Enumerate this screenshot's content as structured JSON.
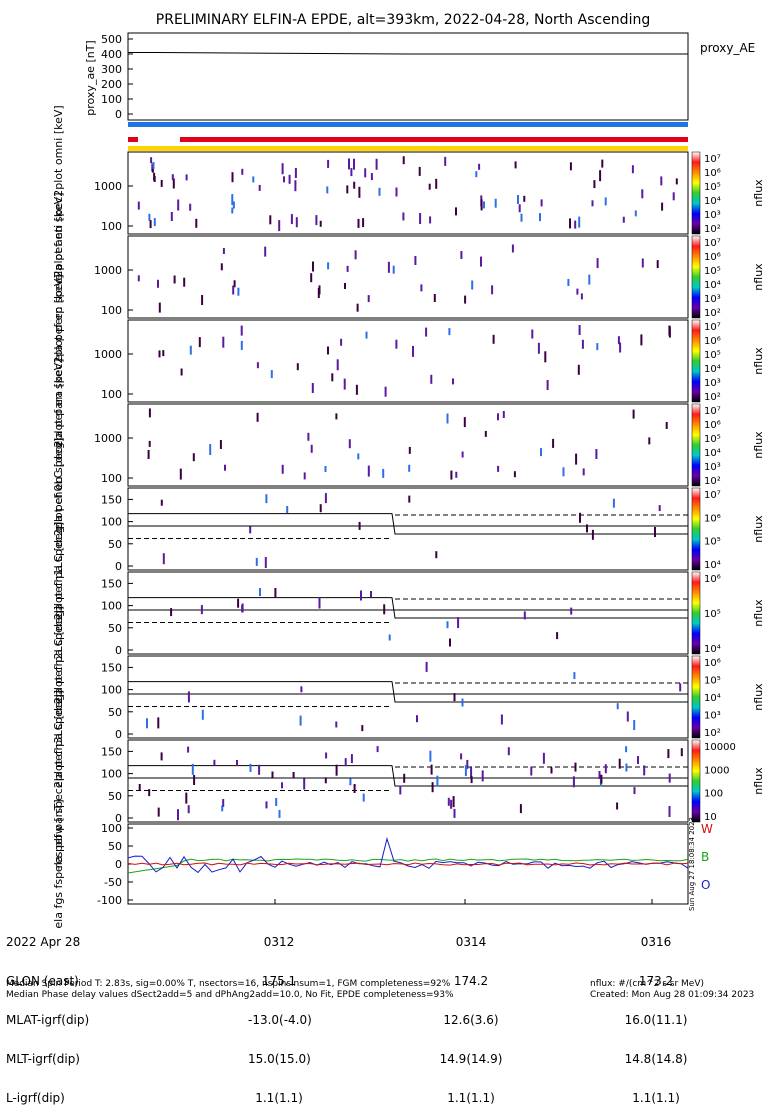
{
  "title": "PRELIMINARY ELFIN-A EPDE, alt=393km, 2022-04-28, North Ascending",
  "colors": {
    "blue_bar": "#1e73e6",
    "red_bar": "#e0001a",
    "yellow_bar": "#ffd400",
    "dark": "#3a0040",
    "purple": "#5a1aa0",
    "mid_blue": "#2e6fe6"
  },
  "chart_data": [
    {
      "type": "line",
      "name": "proxy_ae",
      "ylabel": "proxy_ae [nT]",
      "legend": "proxy_AE",
      "yticks": [
        "500",
        "400",
        "300",
        "200",
        "100",
        "0"
      ],
      "ylim": [
        0,
        500
      ],
      "series": [
        {
          "x": [
            0,
            0.05,
            0.5,
            0.95,
            1
          ],
          "values": [
            410,
            410,
            400,
            400,
            400
          ]
        }
      ]
    },
    {
      "type": "heatmap",
      "name": "omni",
      "ylabel": "ela pef en spec2plot omni [keV]",
      "yticks": [
        "1000",
        "100"
      ],
      "colorbar": {
        "label": "nflux",
        "ticks": [
          "10^7",
          "10^6",
          "10^5",
          "10^4",
          "10^3",
          "10^2"
        ]
      }
    },
    {
      "type": "heatmap",
      "name": "anti",
      "ylabel": "ela pef en spec2plot anti [keV]",
      "yticks": [
        "1000",
        "100"
      ],
      "colorbar": {
        "label": "nflux",
        "ticks": [
          "10^7",
          "10^6",
          "10^5",
          "10^4",
          "10^3",
          "10^2"
        ]
      }
    },
    {
      "type": "heatmap",
      "name": "perp",
      "ylabel": "ela pef en spec2plot perp [keV]",
      "yticks": [
        "1000",
        "100"
      ],
      "colorbar": {
        "label": "nflux",
        "ticks": [
          "10^7",
          "10^6",
          "10^5",
          "10^4",
          "10^3",
          "10^2"
        ]
      }
    },
    {
      "type": "heatmap",
      "name": "para",
      "ylabel": "ela pef en spec2plot para [keV]",
      "yticks": [
        "1000",
        "100"
      ],
      "colorbar": {
        "label": "nflux",
        "ticks": [
          "10^7",
          "10^6",
          "10^5",
          "10^4",
          "10^3",
          "10^2"
        ]
      }
    },
    {
      "type": "heatmap",
      "name": "ch0LC",
      "ylabel": "ela pef pa spec2plot ch0LC [deg]",
      "yticks": [
        "150",
        "100",
        "50",
        "0"
      ],
      "ylim": [
        0,
        180
      ],
      "colorbar": {
        "label": "nflux",
        "ticks": [
          "10^7",
          "10^6",
          "10^5",
          "10^4"
        ]
      }
    },
    {
      "type": "heatmap",
      "name": "ch1LC",
      "ylabel": "ela pef pa spec2plot ch1LC [deg]",
      "yticks": [
        "150",
        "100",
        "50",
        "0"
      ],
      "ylim": [
        0,
        180
      ],
      "colorbar": {
        "label": "nflux",
        "ticks": [
          "10^6",
          "10^5",
          "10^4"
        ]
      }
    },
    {
      "type": "heatmap",
      "name": "ch2LC",
      "ylabel": "ela pef pa spec2plot ch2LC [deg]",
      "yticks": [
        "150",
        "100",
        "50",
        "0"
      ],
      "ylim": [
        0,
        180
      ],
      "colorbar": {
        "label": "nflux",
        "ticks": [
          "10^6",
          "10^5",
          "10^4",
          "10^3",
          "10^2"
        ]
      }
    },
    {
      "type": "heatmap",
      "name": "ch3LC",
      "ylabel": "ela pef pa spec2plot ch3LC [deg]",
      "yticks": [
        "150",
        "100",
        "50",
        "0"
      ],
      "ylim": [
        0,
        180
      ],
      "colorbar": {
        "label": "nflux",
        "ticks": [
          "10000",
          "1000",
          "100",
          "10"
        ]
      }
    },
    {
      "type": "line",
      "name": "pbw",
      "ylabel": "ela fgs fsp res pbw [nT]",
      "yticks": [
        "100",
        "50",
        "0",
        "-50",
        "-100"
      ],
      "ylim": [
        -100,
        100
      ],
      "legend": [
        "W",
        "B",
        "O"
      ],
      "side_label": "Sun Aug 27 18:08:34 2023"
    }
  ],
  "footer": {
    "left_rows": [
      "2022 Apr 28",
      "GLON (east)",
      "MLAT-igrf(dip)",
      "MLT-igrf(dip)",
      "L-igrf(dip)"
    ],
    "columns": [
      {
        "time": "0312",
        "rows": [
          "175.1",
          "-13.0(-4.0)",
          "15.0(15.0)",
          "1.1(1.1)"
        ]
      },
      {
        "time": "0314",
        "rows": [
          "174.2",
          "12.6(3.6)",
          "14.9(14.9)",
          "1.1(1.1)"
        ]
      },
      {
        "time": "0316",
        "rows": [
          "173.2",
          "16.0(11.1)",
          "14.8(14.8)",
          "1.1(1.1)"
        ]
      }
    ],
    "bottom_left_1": "Median Spin Period T: 2.83s, sig=0.00% T, nsectors=16, nspinsinsum=1, FGM completeness=92%",
    "bottom_left_2": "Median Phase delay values dSect2add=5 and dPhAng2add=10.0, No Fit, EPDE completeness=93%",
    "bottom_right_1": "nflux: #/(cm^2 s sr MeV)",
    "bottom_right_2": "Created: Mon Aug 28 01:09:34 2023"
  }
}
